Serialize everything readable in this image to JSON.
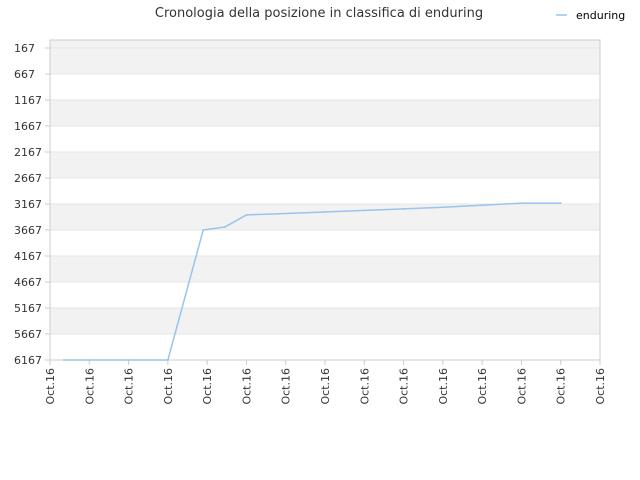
{
  "chart_data": {
    "type": "line",
    "title": "Cronologia della posizione in classifica di enduring",
    "xlabel": "",
    "ylabel": "",
    "legend": {
      "placement": "top-right",
      "entries": [
        "enduring"
      ]
    },
    "y_axis": {
      "reversed": true,
      "ylim": [
        167,
        6167
      ],
      "ticks": [
        167,
        667,
        1167,
        1667,
        2167,
        2667,
        3167,
        3667,
        4167,
        4667,
        5167,
        5667,
        6167
      ]
    },
    "x_axis": {
      "tick_labels": [
        "Oct.16",
        "Oct.16",
        "Oct.16",
        "Oct.16",
        "Oct.16",
        "Oct.16",
        "Oct.16",
        "Oct.16",
        "Oct.16",
        "Oct.16",
        "Oct.16",
        "Oct.16",
        "Oct.16",
        "Oct.16",
        "Oct.16"
      ]
    },
    "grid": true,
    "colors": {
      "series": "#99c4ee",
      "band": "#f2f2f2",
      "grid": "#e6e6e6",
      "axis": "#cccccc"
    },
    "series": [
      {
        "name": "enduring",
        "x": [
          0.35,
          1.0,
          2.0,
          3.0,
          3.9,
          4.45,
          5.0,
          6.0,
          7.0,
          8.0,
          9.0,
          10.0,
          11.0,
          12.0,
          13.0
        ],
        "values": [
          6167,
          6167,
          6167,
          6167,
          3667,
          3610,
          3377,
          3350,
          3320,
          3290,
          3260,
          3230,
          3190,
          3150,
          3150
        ]
      }
    ]
  }
}
